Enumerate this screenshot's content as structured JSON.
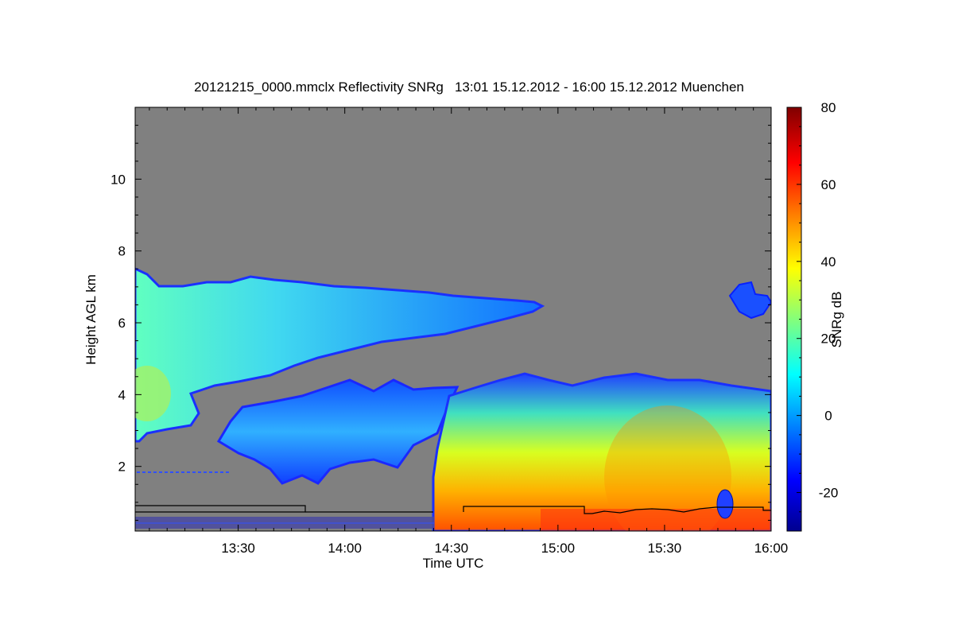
{
  "chart_data": {
    "type": "heatmap",
    "title": "20121215_0000.mmclx Reflectivity SNRg   13:01 15.12.2012 - 16:00 15.12.2012 Muenchen",
    "xlabel": "Time UTC",
    "ylabel": "Height AGL km",
    "x_unit": "UTC",
    "xlim": [
      "13:01",
      "16:00"
    ],
    "ylim": [
      0.2,
      12
    ],
    "x_ticks": [
      "13:30",
      "14:00",
      "14:30",
      "15:00",
      "15:30",
      "16:00"
    ],
    "y_ticks": [
      "2",
      "4",
      "6",
      "8",
      "10"
    ],
    "colorbar": {
      "label": "SNRg dB",
      "range": [
        -30,
        80
      ],
      "ticks": [
        "-20",
        "0",
        "20",
        "40",
        "60",
        "80"
      ],
      "colormap": "jet"
    },
    "background_color": "#808080",
    "regions": [
      {
        "name": "upper cloud layer",
        "time": [
          "13:01",
          "14:55"
        ],
        "height_km": [
          3.0,
          7.5
        ],
        "snr_db": [
          -5,
          25
        ]
      },
      {
        "name": "mid cloud layer",
        "time": [
          "13:40",
          "14:30"
        ],
        "height_km": [
          1.5,
          4.5
        ],
        "snr_db": [
          -15,
          10
        ]
      },
      {
        "name": "precipitation",
        "time": [
          "14:25",
          "16:00"
        ],
        "height_km": [
          0.2,
          4.5
        ],
        "snr_db": [
          0,
          70
        ]
      },
      {
        "name": "upper cloud fragment",
        "time": [
          "15:48",
          "16:00"
        ],
        "height_km": [
          6.0,
          7.0
        ],
        "snr_db": [
          -20,
          0
        ]
      }
    ]
  }
}
